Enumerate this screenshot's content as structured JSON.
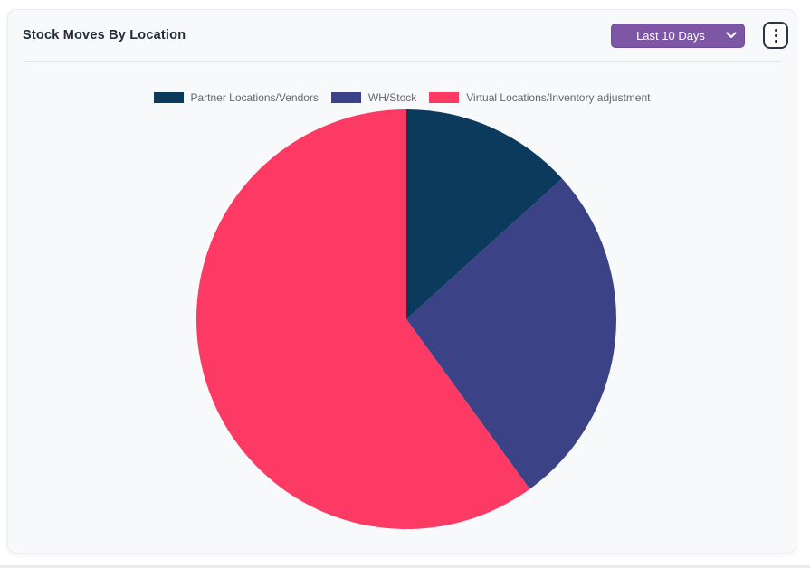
{
  "card": {
    "title": "Stock Moves By Location",
    "date_filter": {
      "selected": "Last 10 Days"
    },
    "menu_icon": "kebab-vertical-icon"
  },
  "chart_data": {
    "type": "pie",
    "title": "Stock Moves By Location",
    "labels": [
      "Partner Locations/Vendors",
      "WH/Stock",
      "Virtual Locations/Inventory adjustment"
    ],
    "values": [
      13.3,
      26.7,
      60.0
    ],
    "unit": "percent-of-circle",
    "colors": [
      "#0b3a5c",
      "#3b4286",
      "#fc3a63"
    ],
    "start_angle_deg": 0,
    "direction": "clockwise",
    "legend_position": "top",
    "data_labels": "none"
  },
  "colors": {
    "accent_purple": "#7d57a5",
    "card_background": "#f8f9fb",
    "legend_text": "#666666",
    "title_text": "#232c38"
  }
}
